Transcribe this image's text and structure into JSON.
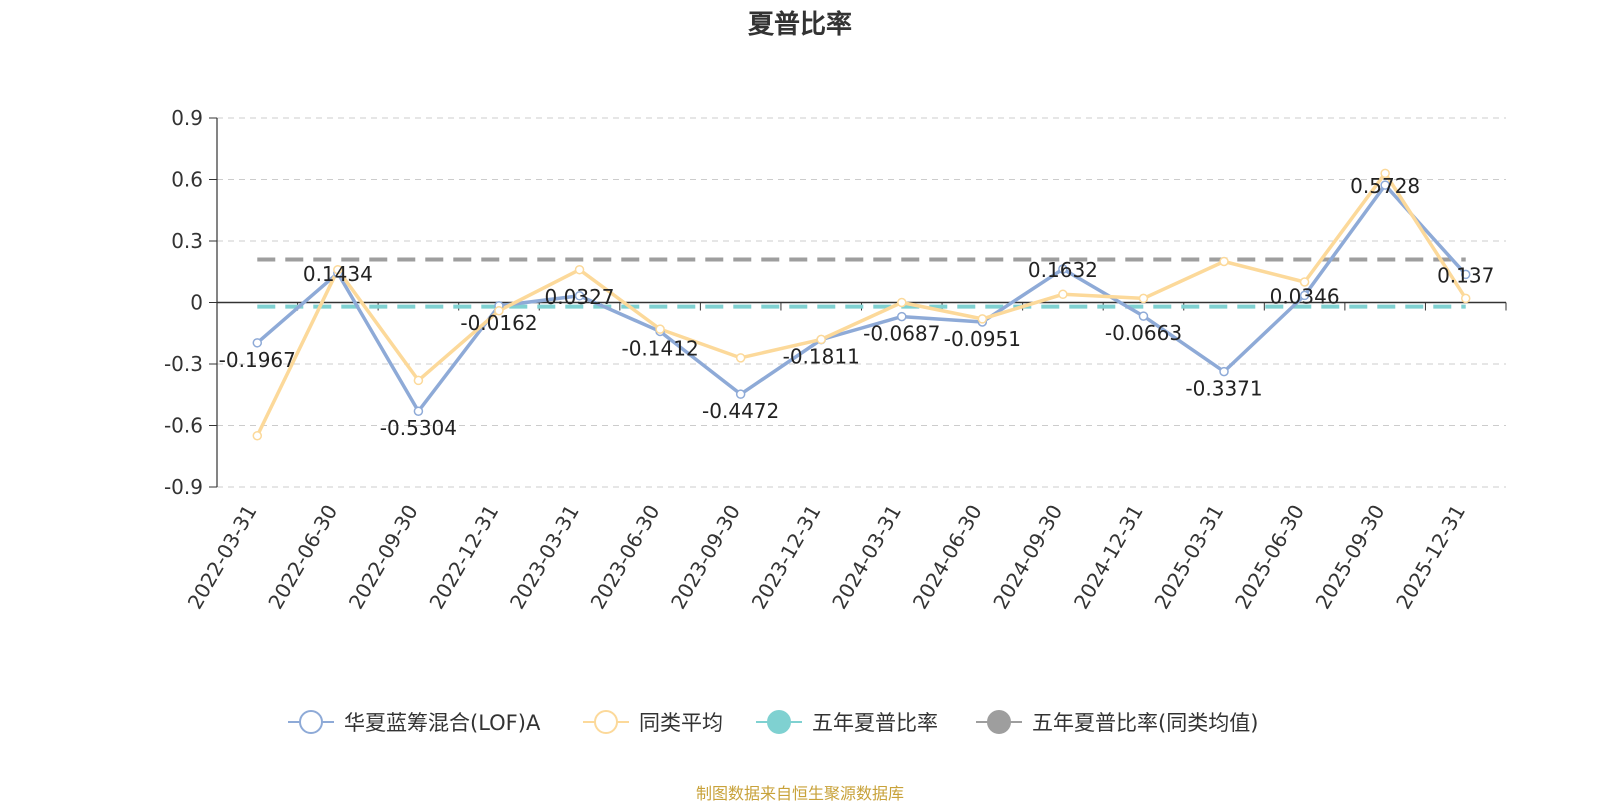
{
  "chart_data": {
    "type": "line",
    "title": "夏普比率",
    "categories": [
      "2022-03-31",
      "2022-06-30",
      "2022-09-30",
      "2022-12-31",
      "2023-03-31",
      "2023-06-30",
      "2023-09-30",
      "2023-12-31",
      "2024-03-31",
      "2024-06-30",
      "2024-09-30",
      "2024-12-31",
      "2025-03-31",
      "2025-06-30",
      "2025-09-30",
      "2025-12-31"
    ],
    "ylim": [
      -0.9,
      0.9
    ],
    "yticks": [
      "0.9",
      "0.6",
      "0.3",
      "0",
      "-0.3",
      "-0.6",
      "-0.9"
    ],
    "grid": true,
    "legend_position": "bottom",
    "series": [
      {
        "name": "华夏蓝筹混合(LOF)A",
        "color": "#8eaad7",
        "values": [
          -0.1967,
          0.1434,
          -0.5304,
          -0.0162,
          0.0327,
          -0.1412,
          -0.4472,
          -0.1811,
          -0.0687,
          -0.0951,
          0.1632,
          -0.0663,
          -0.3371,
          0.0346,
          0.5728,
          0.137
        ],
        "labels": [
          "-0.1967",
          "0.1434",
          "-0.5304",
          "-0.0162",
          "0.0327",
          "-0.1412",
          "-0.4472",
          "-0.1811",
          "-0.0687",
          "-0.0951",
          "0.1632",
          "-0.0663",
          "-0.3371",
          "0.0346",
          "0.5728",
          "0.137"
        ]
      },
      {
        "name": "同类平均",
        "color": "#fcd99a",
        "values": [
          -0.65,
          0.16,
          -0.38,
          -0.04,
          0.16,
          -0.13,
          -0.27,
          -0.18,
          0.0,
          -0.08,
          0.04,
          0.02,
          0.2,
          0.1,
          0.63,
          0.02
        ]
      },
      {
        "name": "五年夏普比率",
        "color": "#7fd1d1",
        "style": "dashed",
        "constant": -0.02
      },
      {
        "name": "五年夏普比率(同类均值)",
        "color": "#9e9e9e",
        "style": "dashed",
        "constant": 0.21
      }
    ]
  },
  "source_note": "制图数据来自恒生聚源数据库"
}
